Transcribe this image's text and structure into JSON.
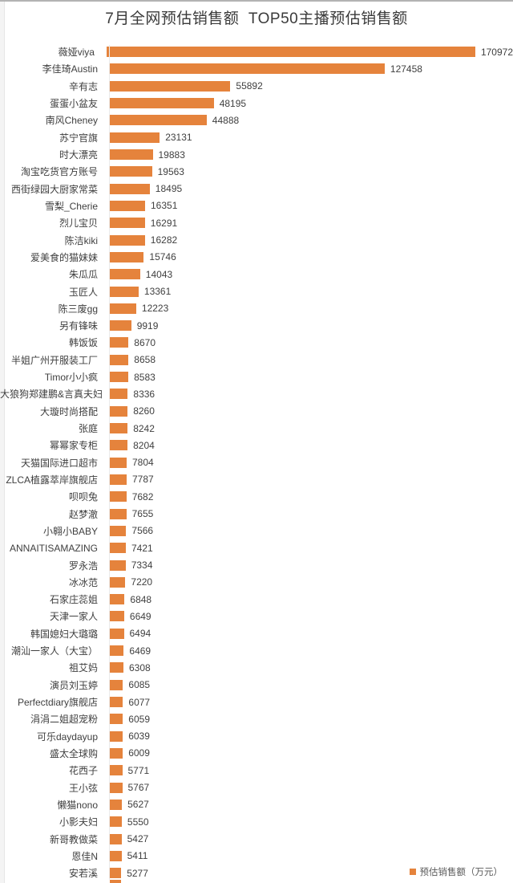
{
  "title": "7月全网预估销售额  TOP50主播预估销售额",
  "legend": {
    "label": "预估销售额（万元）"
  },
  "chart_data": {
    "type": "bar",
    "orientation": "horizontal",
    "title": "7月全网预估销售额  TOP50主播预估销售额",
    "unit": "万元",
    "bar_color": "#E5833C",
    "xlim": [
      0,
      170972
    ],
    "grid": false,
    "legend_position": "bottom-right",
    "legend_label": "预估销售额（万元）",
    "clipped_row_visible": true,
    "categories": [
      "薇娅viya",
      "李佳琦Austin",
      "辛有志",
      "蛋蛋小盆友",
      "南风Cheney",
      "苏宁官旗",
      "时大漂亮",
      "淘宝吃货官方账号",
      "西街绿园大厨家常菜",
      "雪梨_Cherie",
      "烈儿宝贝",
      "陈洁kiki",
      "爱美食的猫妹妹",
      "朱瓜瓜",
      "玉匠人",
      "陈三废gg",
      "另有锋味",
      "韩饭饭",
      "半姐广州开服装工厂",
      "Timor小小疯",
      "大狼狗郑建鹏&言真夫妇",
      "大璇时尚搭配",
      "张庭",
      "幂幂家专柜",
      "天猫国际进口超市",
      "ZLCA植露萃岸旗舰店",
      "呗呗兔",
      "赵梦澈",
      "小翱小BABY",
      "ANNAITISAMAZING",
      "罗永浩",
      "冰冰范",
      "石家庄蕊姐",
      "天津一家人",
      "韩国媳妇大璐璐",
      "潮汕一家人（大宝）",
      "祖艾妈",
      "演员刘玉婷",
      "Perfectdiary旗舰店",
      "涓涓二姐超宠粉",
      "可乐daydayup",
      "盛太全球购",
      "花西子",
      "王小弦",
      "懒猫nono",
      "小影夫妇",
      "新哥教做菜",
      "恩佳N",
      "安若溪"
    ],
    "values": [
      170972,
      127458,
      55892,
      48195,
      44888,
      23131,
      19883,
      19563,
      18495,
      16351,
      16291,
      16282,
      15746,
      14043,
      13361,
      12223,
      9919,
      8670,
      8658,
      8583,
      8336,
      8260,
      8242,
      8204,
      7804,
      7787,
      7682,
      7655,
      7566,
      7421,
      7334,
      7220,
      6848,
      6649,
      6494,
      6469,
      6308,
      6085,
      6077,
      6059,
      6039,
      6009,
      5771,
      5767,
      5627,
      5550,
      5427,
      5411,
      5277
    ]
  }
}
